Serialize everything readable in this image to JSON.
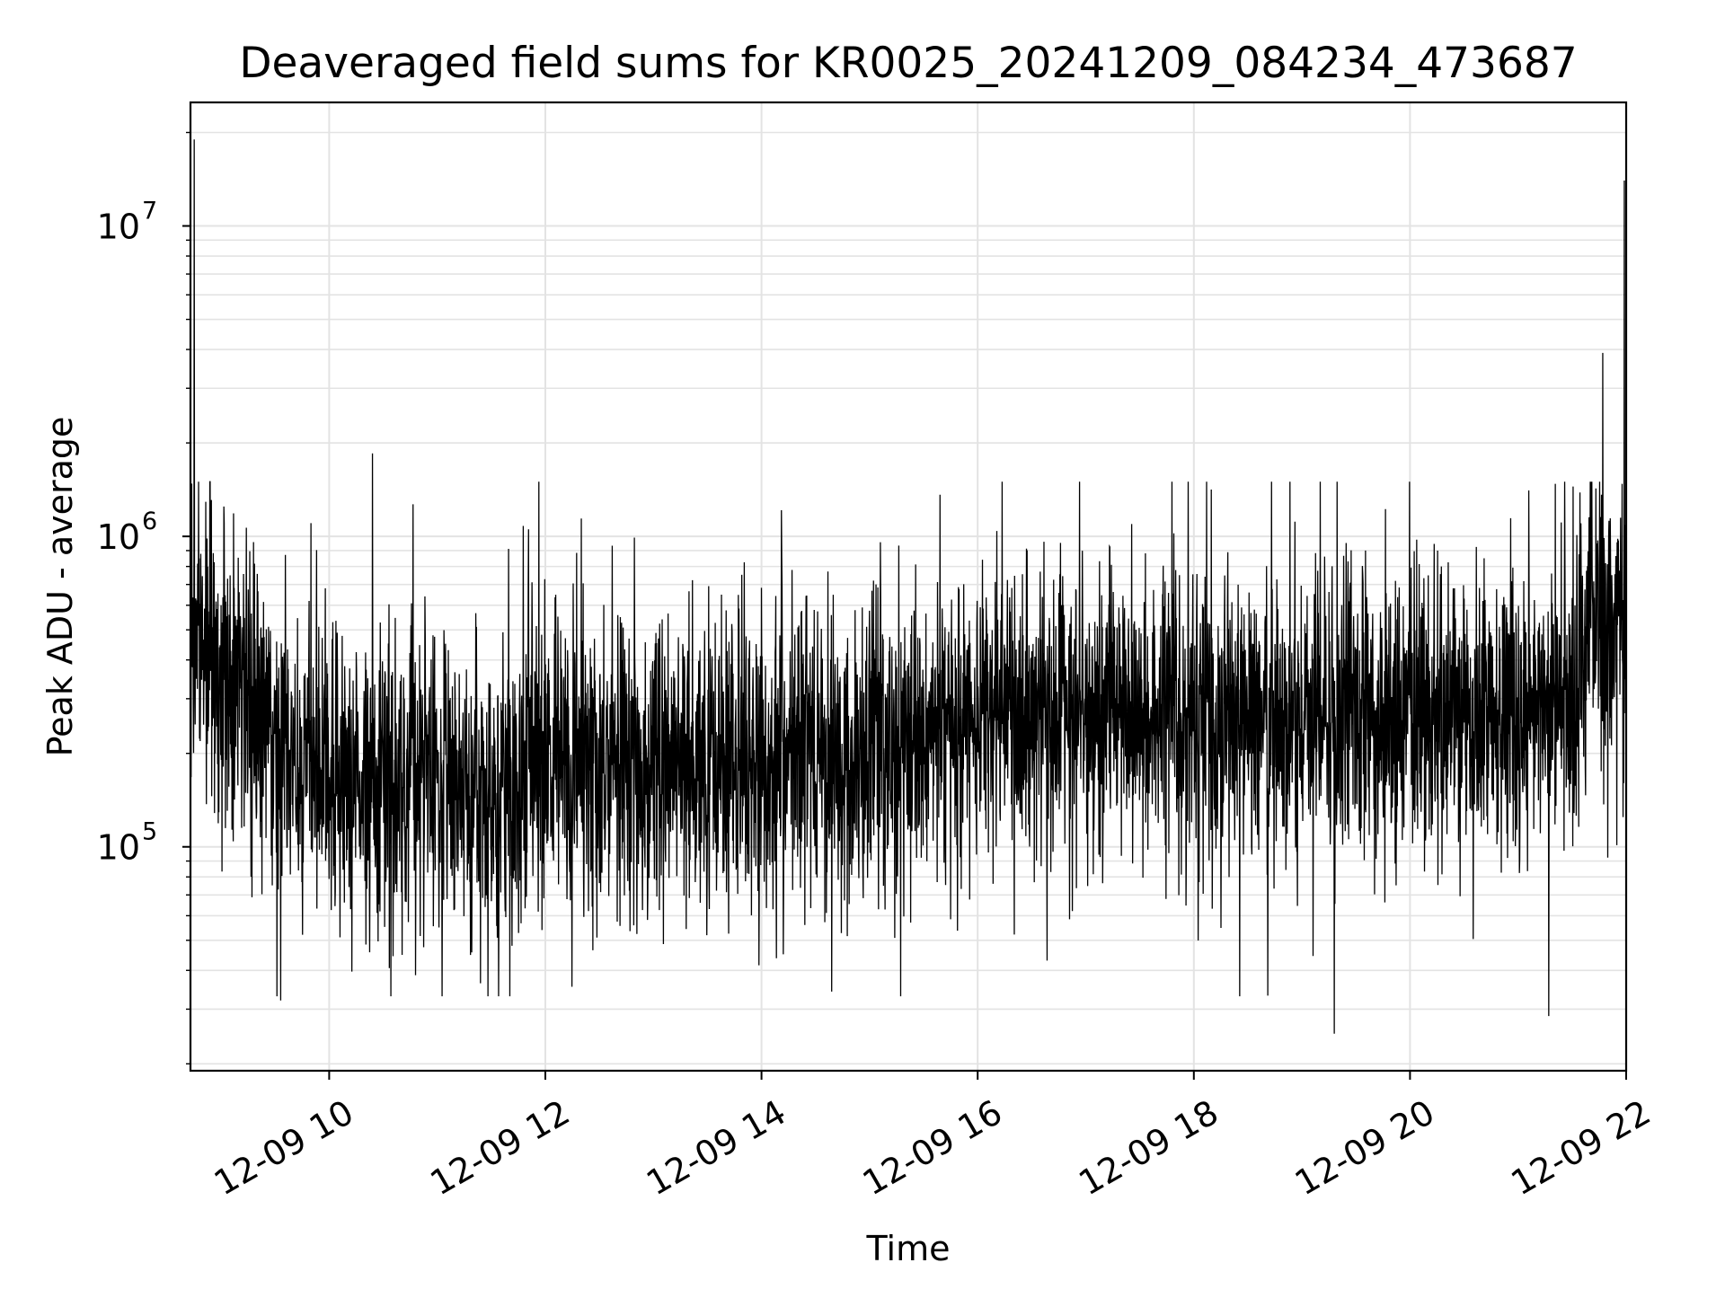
{
  "chart_data": {
    "type": "line",
    "title": "Deaveraged field sums for KR0025_20241209_084234_473687",
    "xlabel": "Time",
    "ylabel": "Peak ADU - average",
    "yscale": "log",
    "xlim": [
      "12-09 08:43",
      "12-09 22:00"
    ],
    "ylim": [
      19000,
      25000000
    ],
    "grid": true,
    "legend": "none",
    "line_color": "#000000",
    "grid_color": "#e3e3e3",
    "x_ticks": [
      "12-09 10",
      "12-09 12",
      "12-09 14",
      "12-09 16",
      "12-09 18",
      "12-09 20",
      "12-09 22"
    ],
    "y_ticks": [
      {
        "base": "10",
        "exp": "5"
      },
      {
        "base": "10",
        "exp": "6"
      },
      {
        "base": "10",
        "exp": "7"
      }
    ],
    "series": [
      {
        "x": [
          "12-09 08:43",
          "12-09 09:00",
          "12-09 09:15",
          "12-09 09:30",
          "12-09 10:00",
          "12-09 10:30",
          "12-09 11:00",
          "12-09 11:30",
          "12-09 12:00",
          "12-09 12:30",
          "12-09 13:00",
          "12-09 13:30",
          "12-09 14:00",
          "12-09 14:30",
          "12-09 15:00",
          "12-09 15:30",
          "12-09 16:00",
          "12-09 16:30",
          "12-09 17:00",
          "12-09 17:30",
          "12-09 18:00",
          "12-09 18:30",
          "12-09 19:00",
          "12-09 19:30",
          "12-09 20:00",
          "12-09 20:30",
          "12-09 21:00",
          "12-09 21:30",
          "12-09 21:40",
          "12-09 21:50",
          "12-09 22:00"
        ],
        "values": [
          500000,
          400000,
          300000,
          220000,
          150000,
          160000,
          170000,
          140000,
          190000,
          180000,
          180000,
          190000,
          200000,
          210000,
          220000,
          230000,
          250000,
          260000,
          270000,
          270000,
          250000,
          260000,
          260000,
          250000,
          260000,
          270000,
          280000,
          320000,
          550000,
          560000,
          500000
        ]
      }
    ],
    "notable_peaks": [
      {
        "x": "12-09 08:45",
        "y": 19000000
      },
      {
        "x": "12-09 10:24",
        "y": 1850000
      },
      {
        "x": "12-09 21:47",
        "y": 3900000
      },
      {
        "x": "12-09 21:59",
        "y": 14000000
      }
    ],
    "notable_dips": [
      {
        "x": "12-09 09:33",
        "y": 32000
      },
      {
        "x": "12-09 19:18",
        "y": 25000
      },
      {
        "x": "12-09 21:17",
        "y": 28500
      }
    ]
  }
}
